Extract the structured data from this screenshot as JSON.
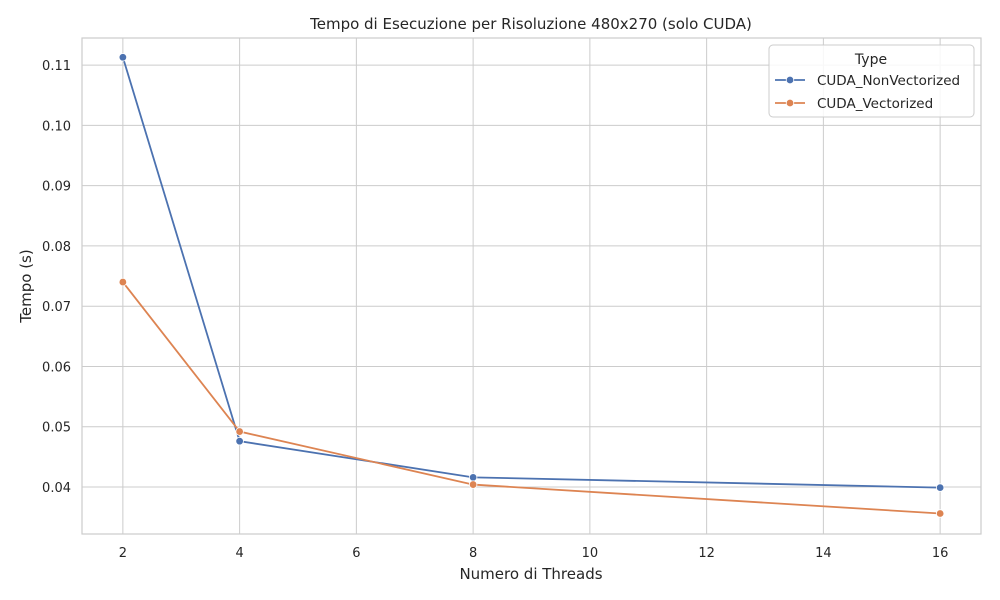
{
  "chart_data": {
    "type": "line",
    "title": "Tempo di Esecuzione per Risoluzione 480x270 (solo CUDA)",
    "xlabel": "Numero di Threads",
    "ylabel": "Tempo (s)",
    "x": [
      2,
      4,
      8,
      16
    ],
    "xticks": [
      "2",
      "4",
      "6",
      "8",
      "10",
      "12",
      "14",
      "16"
    ],
    "xtick_values": [
      2,
      4,
      6,
      8,
      10,
      12,
      14,
      16
    ],
    "yticks": [
      "0.04",
      "0.05",
      "0.06",
      "0.07",
      "0.08",
      "0.09",
      "0.10",
      "0.11"
    ],
    "ytick_values": [
      0.04,
      0.05,
      0.06,
      0.07,
      0.08,
      0.09,
      0.1,
      0.11
    ],
    "xlim": [
      1.3,
      16.7
    ],
    "ylim": [
      0.0322,
      0.1145
    ],
    "grid": true,
    "legend": {
      "title": "Type",
      "placement": "top-right"
    },
    "series": [
      {
        "name": "CUDA_NonVectorized",
        "color": "#4c72b0",
        "values": [
          0.1113,
          0.0476,
          0.0416,
          0.0399
        ]
      },
      {
        "name": "CUDA_Vectorized",
        "color": "#dd8452",
        "values": [
          0.074,
          0.0492,
          0.0404,
          0.0356
        ]
      }
    ]
  }
}
